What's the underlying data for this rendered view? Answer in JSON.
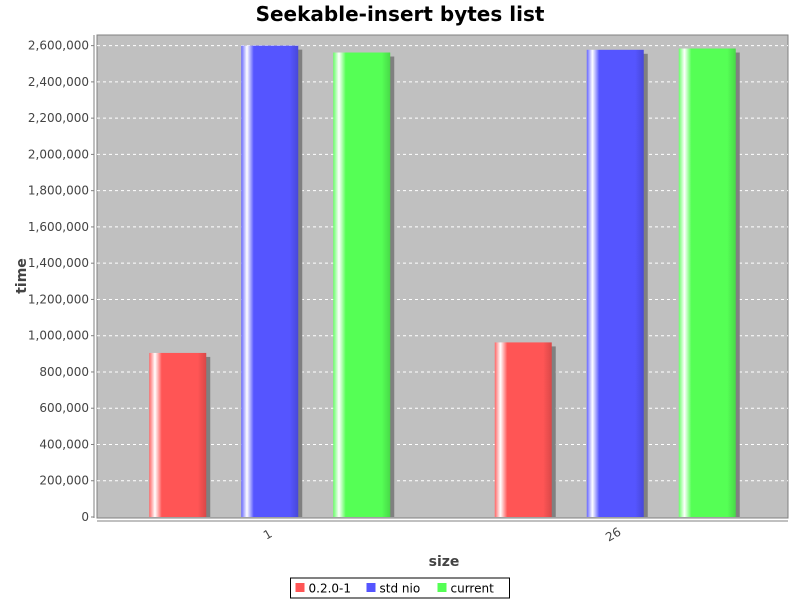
{
  "chart_data": {
    "type": "bar",
    "title": "Seekable-insert bytes list",
    "xlabel": "size",
    "ylabel": "time",
    "categories": [
      "1",
      "26"
    ],
    "series": [
      {
        "name": "0.2.0-1",
        "color": "#ff5555",
        "values": [
          905000,
          963000
        ]
      },
      {
        "name": "std nio",
        "color": "#5555ff",
        "values": [
          2600000,
          2577000
        ]
      },
      {
        "name": "current",
        "color": "#55ff55",
        "values": [
          2562000,
          2584000
        ]
      }
    ],
    "ylim": [
      0,
      2620000
    ],
    "yticks": [
      0,
      200000,
      400000,
      600000,
      800000,
      1000000,
      1200000,
      1400000,
      1600000,
      1800000,
      2000000,
      2200000,
      2400000,
      2600000
    ],
    "grid": true,
    "legend_position": "bottom",
    "plot_background": "#c0c0c0"
  }
}
